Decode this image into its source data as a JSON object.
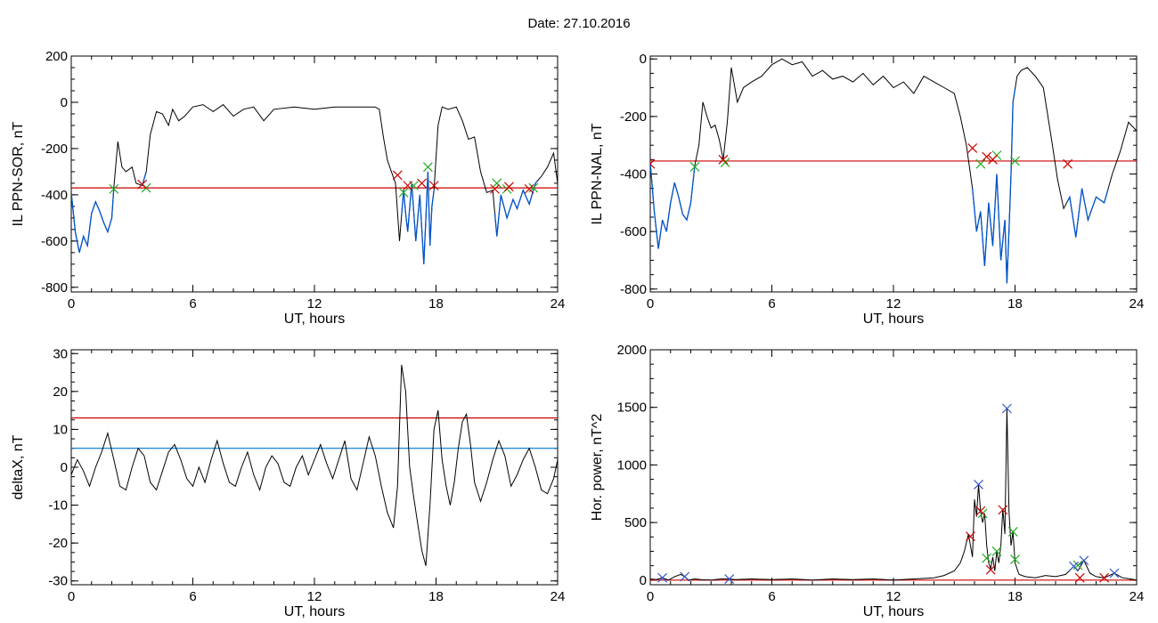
{
  "page": {
    "title": "Date:  27.10.2016"
  },
  "colors": {
    "trace": "#000000",
    "segment": "#0055cc",
    "threshold": "#cc0000",
    "level2": "#0077cc",
    "cross_start": "#22aa22",
    "cross_end": "#cc0000",
    "cross_peak": "#3355cc"
  },
  "chart_data": [
    {
      "id": "sor",
      "type": "line",
      "title": "",
      "xlabel": "UT, hours",
      "ylabel": "IL PPN-SOR, nT",
      "xlim": [
        0,
        24
      ],
      "ylim": [
        -820,
        200
      ],
      "xticks": [
        0,
        6,
        12,
        18,
        24
      ],
      "yticks": [
        200,
        0,
        -200,
        -400,
        -600,
        -800
      ],
      "threshold": -370,
      "segments": [
        [
          0,
          2.1
        ],
        [
          3.5,
          3.7
        ],
        [
          16.3,
          17.9
        ],
        [
          20.9,
          23.0
        ]
      ],
      "markers_start": [
        [
          2.1,
          -375
        ],
        [
          3.7,
          -370
        ],
        [
          16.4,
          -390
        ],
        [
          16.9,
          -360
        ],
        [
          17.6,
          -280
        ],
        [
          21.0,
          -350
        ],
        [
          21.5,
          -375
        ],
        [
          22.8,
          -370
        ]
      ],
      "markers_end": [
        [
          3.5,
          -355
        ],
        [
          16.1,
          -315
        ],
        [
          16.6,
          -360
        ],
        [
          17.3,
          -350
        ],
        [
          17.9,
          -360
        ],
        [
          20.9,
          -375
        ],
        [
          21.6,
          -365
        ],
        [
          22.6,
          -375
        ]
      ],
      "series": [
        {
          "x": [
            0,
            0.2,
            0.4,
            0.6,
            0.8,
            1.0,
            1.2,
            1.4,
            1.6,
            1.8,
            2.0,
            2.1,
            2.3,
            2.5,
            2.7,
            3.0,
            3.2,
            3.5,
            3.7,
            3.9,
            4.2,
            4.5,
            4.8,
            5.0,
            5.3,
            5.6,
            6.0,
            6.5,
            7.0,
            7.5,
            8.0,
            8.5,
            9.0,
            9.5,
            10.0,
            11.0,
            12.0,
            13.0,
            14.0,
            15.0,
            15.2,
            15.4,
            15.6,
            15.8,
            16.0,
            16.2,
            16.4,
            16.5,
            16.6,
            16.8,
            17.0,
            17.2,
            17.4,
            17.5,
            17.6,
            17.7,
            17.8,
            17.9,
            18.1,
            18.3,
            18.6,
            19.0,
            19.3,
            19.6,
            19.9,
            20.2,
            20.5,
            20.8,
            21.0,
            21.2,
            21.5,
            21.8,
            22.0,
            22.3,
            22.6,
            22.9,
            23.2,
            23.5,
            23.8,
            24.0
          ],
          "y": [
            -390,
            -560,
            -650,
            -580,
            -620,
            -480,
            -430,
            -470,
            -520,
            -560,
            -500,
            -370,
            -170,
            -280,
            -300,
            -280,
            -350,
            -360,
            -300,
            -140,
            -40,
            -50,
            -100,
            -30,
            -80,
            -60,
            -20,
            -10,
            -40,
            -10,
            -60,
            -30,
            -20,
            -80,
            -30,
            -20,
            -30,
            -20,
            -20,
            -20,
            -30,
            -150,
            -250,
            -300,
            -350,
            -600,
            -380,
            -480,
            -560,
            -350,
            -600,
            -400,
            -700,
            -500,
            -300,
            -620,
            -450,
            -380,
            -100,
            -20,
            -30,
            -20,
            -80,
            -160,
            -150,
            -300,
            -390,
            -380,
            -580,
            -400,
            -500,
            -420,
            -460,
            -380,
            -440,
            -350,
            -320,
            -280,
            -220,
            -350
          ]
        }
      ]
    },
    {
      "id": "nal",
      "type": "line",
      "title": "",
      "xlabel": "UT, hours",
      "ylabel": "IL PPN-NAL, nT",
      "xlim": [
        0,
        24
      ],
      "ylim": [
        -810,
        10
      ],
      "xticks": [
        0,
        6,
        12,
        18,
        24
      ],
      "yticks": [
        0,
        -200,
        -400,
        -600,
        -800
      ],
      "threshold": -355,
      "segments": [
        [
          0,
          2.2
        ],
        [
          15.9,
          18.0
        ],
        [
          20.6,
          22.6
        ]
      ],
      "markers_start": [
        [
          2.2,
          -375
        ],
        [
          3.7,
          -360
        ],
        [
          16.3,
          -365
        ],
        [
          17.1,
          -335
        ],
        [
          18.0,
          -355
        ]
      ],
      "markers_end": [
        [
          0,
          -365
        ],
        [
          3.6,
          -350
        ],
        [
          15.9,
          -310
        ],
        [
          16.6,
          -340
        ],
        [
          16.9,
          -350
        ],
        [
          20.6,
          -365
        ]
      ],
      "series": [
        {
          "x": [
            0,
            0.2,
            0.4,
            0.6,
            0.8,
            1.0,
            1.2,
            1.4,
            1.6,
            1.8,
            2.0,
            2.2,
            2.4,
            2.6,
            2.8,
            3.0,
            3.2,
            3.4,
            3.6,
            3.8,
            4.0,
            4.3,
            4.6,
            5.0,
            5.5,
            6.0,
            6.5,
            7.0,
            7.5,
            8.0,
            8.5,
            9.0,
            9.5,
            10.0,
            10.5,
            11.0,
            11.5,
            12.0,
            12.5,
            13.0,
            13.5,
            14.0,
            14.5,
            15.0,
            15.3,
            15.6,
            15.9,
            16.1,
            16.3,
            16.5,
            16.7,
            16.9,
            17.1,
            17.3,
            17.5,
            17.6,
            17.7,
            17.8,
            17.9,
            18.1,
            18.3,
            18.6,
            19.0,
            19.4,
            19.8,
            20.1,
            20.4,
            20.7,
            21.0,
            21.3,
            21.6,
            22.0,
            22.4,
            22.8,
            23.2,
            23.6,
            24.0
          ],
          "y": [
            -360,
            -530,
            -660,
            -560,
            -600,
            -500,
            -430,
            -480,
            -540,
            -560,
            -500,
            -370,
            -300,
            -150,
            -200,
            -240,
            -230,
            -280,
            -350,
            -220,
            -30,
            -150,
            -100,
            -80,
            -60,
            -20,
            0,
            -20,
            -10,
            -60,
            -40,
            -70,
            -60,
            -80,
            -50,
            -90,
            -60,
            -100,
            -80,
            -120,
            -60,
            -80,
            -100,
            -120,
            -200,
            -300,
            -450,
            -600,
            -530,
            -720,
            -500,
            -650,
            -400,
            -700,
            -560,
            -780,
            -600,
            -400,
            -150,
            -60,
            -40,
            -30,
            -60,
            -100,
            -280,
            -420,
            -520,
            -480,
            -620,
            -450,
            -560,
            -480,
            -500,
            -400,
            -320,
            -220,
            -250
          ]
        }
      ]
    },
    {
      "id": "deltax",
      "type": "line",
      "title": "",
      "xlabel": "UT, hours",
      "ylabel": "deltaX, nT",
      "xlim": [
        0,
        24
      ],
      "ylim": [
        -31,
        31
      ],
      "xticks": [
        0,
        6,
        12,
        18,
        24
      ],
      "yticks": [
        30,
        20,
        10,
        0,
        -10,
        -20,
        -30
      ],
      "threshold": 13,
      "level2": 5,
      "series": [
        {
          "x": [
            0,
            0.3,
            0.6,
            0.9,
            1.2,
            1.5,
            1.8,
            2.1,
            2.4,
            2.7,
            3.0,
            3.3,
            3.6,
            3.9,
            4.2,
            4.5,
            4.8,
            5.1,
            5.4,
            5.7,
            6.0,
            6.3,
            6.6,
            6.9,
            7.2,
            7.5,
            7.8,
            8.1,
            8.4,
            8.7,
            9.0,
            9.3,
            9.6,
            9.9,
            10.2,
            10.5,
            10.8,
            11.1,
            11.4,
            11.7,
            12.0,
            12.3,
            12.6,
            12.9,
            13.2,
            13.5,
            13.8,
            14.1,
            14.4,
            14.7,
            15.0,
            15.3,
            15.6,
            15.9,
            16.1,
            16.3,
            16.5,
            16.7,
            16.9,
            17.1,
            17.3,
            17.5,
            17.7,
            17.9,
            18.1,
            18.3,
            18.5,
            18.7,
            18.9,
            19.1,
            19.3,
            19.5,
            19.7,
            19.9,
            20.2,
            20.5,
            20.8,
            21.1,
            21.4,
            21.7,
            22.0,
            22.3,
            22.6,
            22.9,
            23.2,
            23.5,
            23.8,
            24.0
          ],
          "y": [
            -2,
            2,
            -1,
            -5,
            0,
            4,
            9,
            2,
            -5,
            -6,
            0,
            5,
            3,
            -4,
            -6,
            -1,
            4,
            6,
            2,
            -3,
            -5,
            0,
            -4,
            2,
            7,
            1,
            -4,
            -5,
            0,
            4,
            -2,
            -6,
            0,
            3,
            1,
            -4,
            -5,
            0,
            3,
            -2,
            2,
            6,
            1,
            -3,
            2,
            7,
            -3,
            -6,
            1,
            8,
            3,
            -5,
            -12,
            -16,
            -5,
            27,
            20,
            0,
            -8,
            -15,
            -22,
            -26,
            -10,
            10,
            15,
            2,
            -5,
            -10,
            -4,
            5,
            12,
            14,
            6,
            -4,
            -9,
            -4,
            2,
            7,
            3,
            -5,
            -2,
            2,
            5,
            0,
            -6,
            -7,
            -3,
            2
          ]
        }
      ]
    },
    {
      "id": "power",
      "type": "line",
      "title": "",
      "xlabel": "UT, hours",
      "ylabel": "Hor. power, nT^2",
      "xlim": [
        0,
        24
      ],
      "ylim": [
        -40,
        2000
      ],
      "xticks": [
        0,
        6,
        12,
        18,
        24
      ],
      "yticks": [
        2000,
        1500,
        1000,
        500,
        0
      ],
      "threshold": 0,
      "markers_peak": [
        [
          0.6,
          20
        ],
        [
          1.7,
          30
        ],
        [
          3.9,
          10
        ],
        [
          16.2,
          830
        ],
        [
          17.6,
          1490
        ],
        [
          20.9,
          120
        ],
        [
          21.4,
          170
        ],
        [
          22.9,
          60
        ]
      ],
      "markers_start": [
        [
          16.4,
          580
        ],
        [
          16.6,
          190
        ],
        [
          17.1,
          250
        ],
        [
          17.9,
          420
        ],
        [
          18.0,
          180
        ],
        [
          21.1,
          130
        ]
      ],
      "markers_end": [
        [
          15.8,
          380
        ],
        [
          16.3,
          600
        ],
        [
          16.8,
          90
        ],
        [
          17.4,
          610
        ],
        [
          21.2,
          20
        ],
        [
          22.4,
          20
        ]
      ],
      "series": [
        {
          "x": [
            0,
            0.3,
            0.6,
            0.9,
            1.2,
            1.5,
            1.7,
            1.9,
            2.2,
            2.5,
            3.0,
            3.5,
            3.9,
            4.2,
            5.0,
            6.0,
            7.0,
            8.0,
            9.0,
            10.0,
            11.0,
            12.0,
            13.0,
            14.0,
            14.5,
            15.0,
            15.3,
            15.5,
            15.7,
            15.9,
            16.0,
            16.1,
            16.2,
            16.3,
            16.4,
            16.5,
            16.6,
            16.7,
            16.8,
            16.9,
            17.0,
            17.1,
            17.2,
            17.3,
            17.4,
            17.5,
            17.6,
            17.7,
            17.8,
            17.9,
            18.0,
            18.2,
            18.5,
            19.0,
            19.5,
            20.0,
            20.5,
            20.9,
            21.1,
            21.4,
            21.7,
            22.0,
            22.4,
            22.9,
            23.3,
            23.7,
            24.0
          ],
          "y": [
            10,
            5,
            20,
            0,
            30,
            50,
            30,
            0,
            10,
            5,
            0,
            10,
            10,
            5,
            10,
            5,
            10,
            0,
            10,
            5,
            10,
            0,
            10,
            20,
            40,
            80,
            150,
            250,
            400,
            200,
            700,
            550,
            830,
            600,
            500,
            580,
            300,
            150,
            100,
            200,
            80,
            250,
            150,
            300,
            620,
            400,
            1490,
            600,
            300,
            420,
            150,
            50,
            30,
            20,
            40,
            30,
            50,
            120,
            80,
            170,
            60,
            30,
            20,
            60,
            20,
            10,
            0
          ]
        }
      ]
    }
  ]
}
